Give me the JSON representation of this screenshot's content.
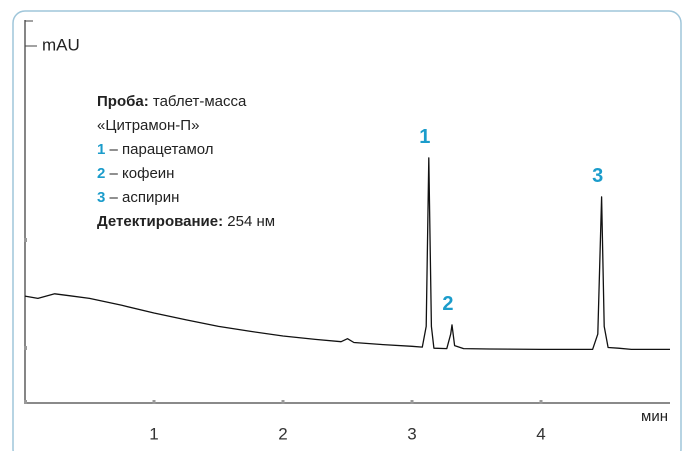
{
  "chart_data": {
    "type": "line",
    "y_label": "mAU",
    "x_label": "мин",
    "x": [
      0,
      0.1,
      0.23,
      0.35,
      0.5,
      0.75,
      1.0,
      1.25,
      1.5,
      1.75,
      2.0,
      2.25,
      2.45,
      2.5,
      2.55,
      2.75,
      3.0,
      3.08,
      3.11,
      3.13,
      3.15,
      3.17,
      3.27,
      3.3,
      3.31,
      3.33,
      3.4,
      3.6,
      4.0,
      4.4,
      4.44,
      4.47,
      4.49,
      4.52,
      4.6,
      4.7,
      5.0
    ],
    "values": [
      27.9,
      27.3,
      28.5,
      28.0,
      27.3,
      25.5,
      23.5,
      21.7,
      20.0,
      18.7,
      17.5,
      16.6,
      16.0,
      16.8,
      15.8,
      15.3,
      14.8,
      14.6,
      20.0,
      64.0,
      20.0,
      14.3,
      14.2,
      18.0,
      20.4,
      15.0,
      14.2,
      14.1,
      14.0,
      14.0,
      18.0,
      53.8,
      20.0,
      14.5,
      14.3,
      14.0,
      14.0
    ],
    "color": "#111111",
    "xlim": [
      0,
      5
    ],
    "xticks": [
      1,
      2,
      3,
      4
    ],
    "ylim": [
      0,
      100
    ],
    "peak_labels": [
      "1",
      "2",
      "3"
    ],
    "legend": {
      "sample_label": "Проба:",
      "sample": [
        "таблет-масса",
        "«Цитрамон-П»"
      ],
      "compounds": [
        {
          "number": "1",
          "name": "– парацетамол"
        },
        {
          "number": "2",
          "name": "– кофеин"
        },
        {
          "number": "3",
          "name": "– аспирин"
        }
      ],
      "detection_label": "Детектирование:",
      "detection": "254 нм"
    }
  }
}
